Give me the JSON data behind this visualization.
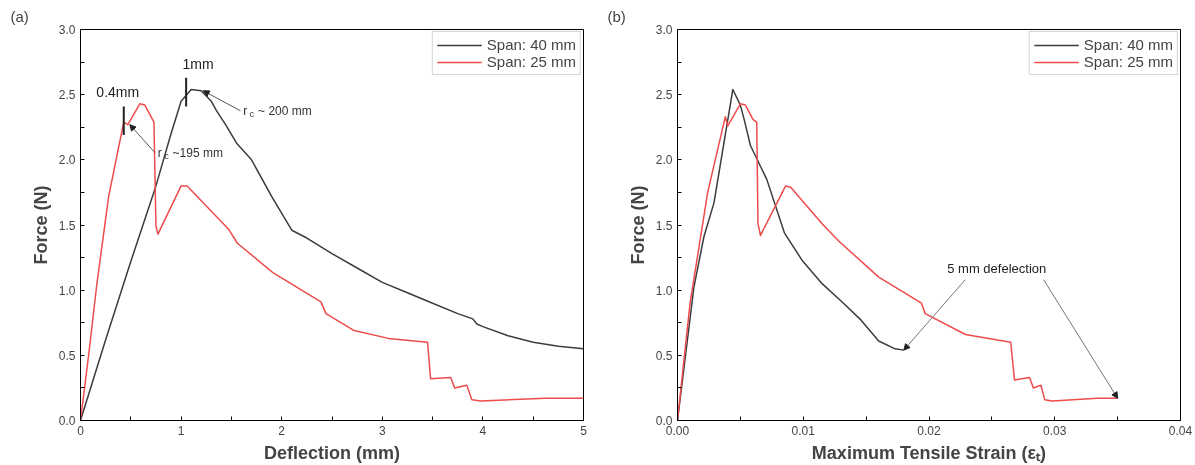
{
  "chart_data": [
    {
      "type": "line",
      "title": "(a)",
      "xlabel": "Deflection (mm)",
      "ylabel": "Force (N)",
      "xlim": [
        0,
        5
      ],
      "ylim": [
        0,
        3
      ],
      "xticks": [
        0,
        {
          "value": 0.5,
          "label": null
        },
        1,
        {
          "value": 1.5,
          "label": null
        },
        2,
        {
          "value": 2.5,
          "label": null
        },
        3,
        {
          "value": 3.5,
          "label": null
        },
        4,
        {
          "value": 4.5,
          "label": null
        },
        5
      ],
      "yticks": [
        {
          "value": 0,
          "label": "0.0"
        },
        {
          "value": 0.25,
          "label": null
        },
        {
          "value": 0.5,
          "label": "0.5"
        },
        {
          "value": 0.75,
          "label": null
        },
        {
          "value": 1,
          "label": "1.0"
        },
        {
          "value": 1.25,
          "label": null
        },
        {
          "value": 1.5,
          "label": "1.5"
        },
        {
          "value": 1.75,
          "label": null
        },
        {
          "value": 2,
          "label": "2.0"
        },
        {
          "value": 2.25,
          "label": null
        },
        {
          "value": 2.5,
          "label": "2.5"
        },
        {
          "value": 2.75,
          "label": null
        },
        {
          "value": 3,
          "label": "3.0"
        }
      ],
      "grid": false,
      "legend": "top right",
      "series": [
        {
          "name": "Span: 40 mm",
          "color": "#3c3c3c",
          "x": [
            0,
            0.25,
            0.5,
            0.75,
            0.9,
            1.0,
            1.1,
            1.2,
            1.3,
            1.35,
            1.45,
            1.55,
            1.7,
            1.9,
            2.1,
            2.25,
            2.5,
            2.75,
            3.0,
            3.25,
            3.5,
            3.75,
            3.9,
            3.94,
            4.0,
            4.25,
            4.5,
            4.75,
            5.0
          ],
          "values": [
            0,
            0.62,
            1.22,
            1.8,
            2.2,
            2.45,
            2.54,
            2.53,
            2.45,
            2.38,
            2.26,
            2.13,
            2.0,
            1.72,
            1.46,
            1.4,
            1.28,
            1.17,
            1.06,
            0.98,
            0.9,
            0.82,
            0.78,
            0.74,
            0.72,
            0.65,
            0.6,
            0.57,
            0.55
          ]
        },
        {
          "name": "Span: 25 mm",
          "color": "#ee4b4b",
          "x": [
            0,
            0.09,
            0.16,
            0.28,
            0.43,
            0.47,
            0.59,
            0.64,
            0.73,
            0.75,
            0.77,
            1.0,
            1.06,
            1.47,
            1.56,
            1.92,
            2.39,
            2.44,
            2.72,
            3.06,
            3.45,
            3.48,
            3.68,
            3.72,
            3.84,
            3.89,
            3.98,
            4.62,
            5.0
          ],
          "values": [
            0,
            0.56,
            1.03,
            1.72,
            2.29,
            2.27,
            2.43,
            2.42,
            2.29,
            1.49,
            1.43,
            1.8,
            1.8,
            1.47,
            1.36,
            1.13,
            0.91,
            0.82,
            0.69,
            0.63,
            0.6,
            0.32,
            0.33,
            0.25,
            0.27,
            0.16,
            0.15,
            0.17,
            0.17
          ]
        }
      ],
      "annotations": [
        {
          "text": "0.4mm",
          "x": 0.43,
          "y": 2.3
        },
        {
          "text": "1mm",
          "x": 1.05,
          "y": 2.52
        },
        {
          "text": "r$_{c}$ ~ 200 mm",
          "x": 1.2,
          "y": 2.53
        },
        {
          "text": "r$_{c}$ ~195 mm",
          "x": 0.47,
          "y": 2.27
        }
      ]
    },
    {
      "type": "line",
      "title": "(b)",
      "xlabel": "Maximum Tensile Strain (εₜ)",
      "ylabel": "Force (N)",
      "xlim": [
        0,
        0.04
      ],
      "ylim": [
        0,
        3
      ],
      "xticks": [
        {
          "value": 0,
          "label": "0.00"
        },
        {
          "value": 0.005,
          "label": null
        },
        {
          "value": 0.01,
          "label": "0.01"
        },
        {
          "value": 0.015,
          "label": null
        },
        {
          "value": 0.02,
          "label": "0.02"
        },
        {
          "value": 0.025,
          "label": null
        },
        {
          "value": 0.03,
          "label": "0.03"
        },
        {
          "value": 0.035,
          "label": null
        },
        {
          "value": 0.04,
          "label": "0.04"
        }
      ],
      "yticks": [
        {
          "value": 0,
          "label": "0.0"
        },
        {
          "value": 0.25,
          "label": null
        },
        {
          "value": 0.5,
          "label": "0.5"
        },
        {
          "value": 0.75,
          "label": null
        },
        {
          "value": 1,
          "label": "1.0"
        },
        {
          "value": 1.25,
          "label": null
        },
        {
          "value": 1.5,
          "label": "1.5"
        },
        {
          "value": 1.75,
          "label": null
        },
        {
          "value": 2,
          "label": "2.0"
        },
        {
          "value": 2.25,
          "label": null
        },
        {
          "value": 2.5,
          "label": "2.5"
        },
        {
          "value": 2.75,
          "label": null
        },
        {
          "value": 3,
          "label": "3.0"
        }
      ],
      "grid": false,
      "legend": "top right",
      "series": [
        {
          "name": "Span: 40 mm",
          "color": "#3c3c3c",
          "x": [
            0,
            0.0013,
            0.0021,
            0.0029,
            0.0044,
            0.005,
            0.0053,
            0.0058,
            0.0071,
            0.0085,
            0.0099,
            0.0115,
            0.0132,
            0.0146,
            0.016,
            0.0173,
            0.018
          ],
          "values": [
            0,
            1.02,
            1.41,
            1.67,
            2.54,
            2.42,
            2.31,
            2.11,
            1.85,
            1.44,
            1.23,
            1.05,
            0.9,
            0.77,
            0.61,
            0.55,
            0.54
          ]
        },
        {
          "name": "Span: 25 mm",
          "color": "#ee4b4b",
          "x": [
            0,
            0.001,
            0.0024,
            0.0038,
            0.004,
            0.005,
            0.0054,
            0.006,
            0.0063,
            0.0064,
            0.0066,
            0.0086,
            0.009,
            0.0115,
            0.0129,
            0.016,
            0.0194,
            0.0197,
            0.0229,
            0.0265,
            0.0268,
            0.028,
            0.0283,
            0.0289,
            0.0292,
            0.0298,
            0.0334,
            0.035
          ],
          "values": [
            0,
            0.9,
            1.75,
            2.33,
            2.26,
            2.43,
            2.42,
            2.31,
            2.29,
            1.51,
            1.42,
            1.8,
            1.79,
            1.51,
            1.37,
            1.1,
            0.9,
            0.82,
            0.66,
            0.6,
            0.31,
            0.33,
            0.25,
            0.27,
            0.16,
            0.15,
            0.17,
            0.17
          ]
        }
      ],
      "annotations": [
        {
          "text": "5 mm defelection",
          "x": 0.018,
          "y": 0.54
        }
      ]
    }
  ]
}
